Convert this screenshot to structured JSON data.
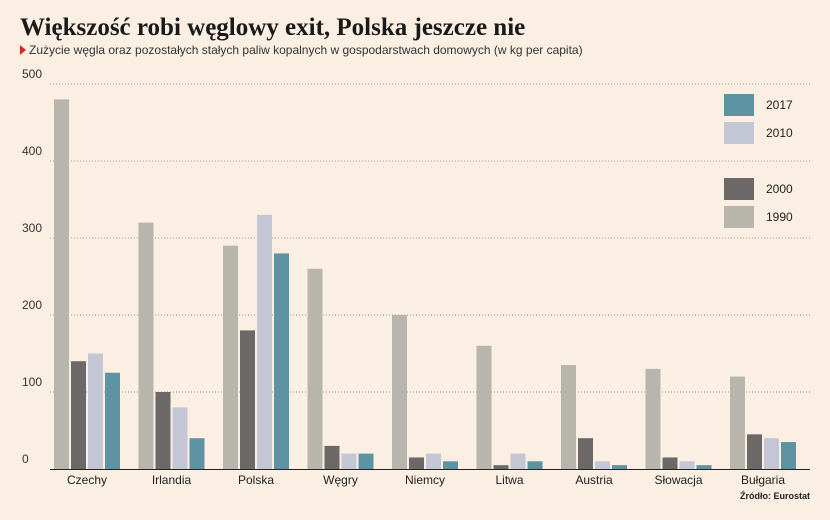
{
  "title": "Większość robi węglowy exit, Polska jeszcze nie",
  "subtitle": "Zużycie węgla oraz pozostałych stałych paliw kopalnych w gospodarstwach domowych (w kg per capita)",
  "source": "Źródło: Eurostat",
  "colors": {
    "1990": "#b8b5ac",
    "2000": "#6b6867",
    "2010": "#c3c6d5",
    "2017": "#5e93a3",
    "grid": "#9a9a9a",
    "background": "#fbeee2"
  },
  "chart_data": {
    "type": "bar",
    "title": "Większość robi węglowy exit, Polska jeszcze nie",
    "subtitle": "Zużycie węgla oraz pozostałych stałych paliw kopalnych w gospodarstwach domowych (w kg per capita)",
    "xlabel": "",
    "ylabel": "",
    "ylim": [
      0,
      500
    ],
    "yticks": [
      0,
      100,
      200,
      300,
      400,
      500
    ],
    "grid": true,
    "legend_position": "top-right",
    "categories": [
      "Czechy",
      "Irlandia",
      "Polska",
      "Węgry",
      "Niemcy",
      "Litwa",
      "Austria",
      "Słowacja",
      "Bułgaria"
    ],
    "series": [
      {
        "name": "1990",
        "values": [
          480,
          320,
          290,
          260,
          200,
          160,
          135,
          130,
          120
        ]
      },
      {
        "name": "2000",
        "values": [
          140,
          100,
          180,
          30,
          15,
          5,
          40,
          15,
          45
        ]
      },
      {
        "name": "2010",
        "values": [
          150,
          80,
          330,
          20,
          20,
          20,
          10,
          10,
          40
        ]
      },
      {
        "name": "2017",
        "values": [
          125,
          40,
          280,
          20,
          10,
          10,
          5,
          5,
          35
        ]
      }
    ],
    "legend": [
      {
        "series": "2017"
      },
      {
        "series": "2010"
      },
      {
        "series": "2000"
      },
      {
        "series": "1990"
      }
    ]
  }
}
